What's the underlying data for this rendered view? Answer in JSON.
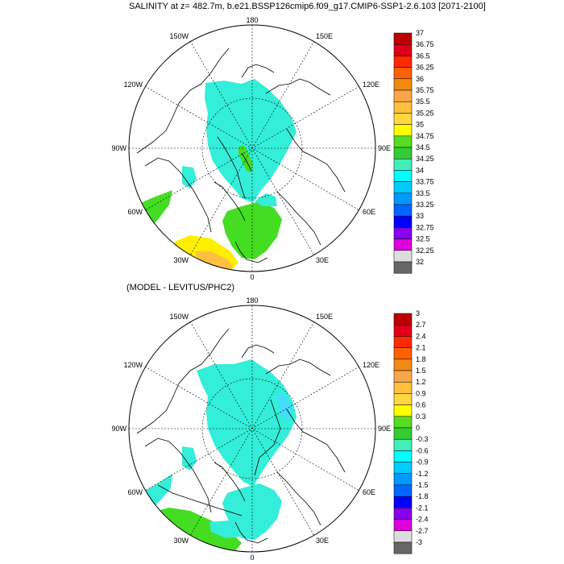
{
  "top_panel": {
    "title": "SALINITY at z= 482.7m, b.e21.BSSP126cmip6.f09_g17.CMIP6-SSP1-2.6.103 [2071-2100]",
    "longitude_labels": [
      "180",
      "150E",
      "120E",
      "90E",
      "60E",
      "30E",
      "0",
      "30W",
      "60W",
      "90W",
      "120W",
      "150W"
    ],
    "colorbar": {
      "labels": [
        "37",
        "36.75",
        "36.5",
        "36.25",
        "36",
        "35.75",
        "35.5",
        "35.25",
        "35",
        "34.75",
        "34.5",
        "34.25",
        "34",
        "33.75",
        "33.5",
        "33.25",
        "33",
        "32.75",
        "32.5",
        "32.25",
        "32"
      ],
      "colors": [
        "#c00000",
        "#e0001a",
        "#ff2a00",
        "#ff6000",
        "#f08a10",
        "#fba54a",
        "#ffc040",
        "#ffd840",
        "#ffff00",
        "#55dd22",
        "#33cc33",
        "#44eebb",
        "#00ffff",
        "#00ccff",
        "#0099ff",
        "#0066ff",
        "#0000ff",
        "#8800ee",
        "#dd00dd",
        "#dddddd",
        "#666666"
      ]
    }
  },
  "bottom_panel": {
    "title": "(MODEL - LEVITUS/PHC2)",
    "longitude_labels": [
      "180",
      "150E",
      "120E",
      "90E",
      "60E",
      "30E",
      "0",
      "30W",
      "60W",
      "90W",
      "120W",
      "150W"
    ],
    "colorbar": {
      "labels": [
        "3",
        "2.7",
        "2.4",
        "2.1",
        "1.8",
        "1.5",
        "1.2",
        "0.9",
        "0.6",
        "0.3",
        "0",
        "-0.3",
        "-0.6",
        "-0.9",
        "-1.2",
        "-1.5",
        "-1.8",
        "-2.1",
        "-2.4",
        "-2.7",
        "-3"
      ],
      "colors": [
        "#c00000",
        "#e0001a",
        "#ff2a00",
        "#ff6000",
        "#f08a10",
        "#fba54a",
        "#ffc040",
        "#ffd840",
        "#ffff00",
        "#55dd22",
        "#33cc33",
        "#44eebb",
        "#00ffff",
        "#00ccff",
        "#0099ff",
        "#0066ff",
        "#0000ff",
        "#8800ee",
        "#dd00dd",
        "#dddddd",
        "#666666"
      ]
    }
  },
  "colors": {
    "cyan_field": "#33eed8",
    "green_field": "#44dd22",
    "bright_green": "#33cc33",
    "yellow_field": "#ffee00",
    "orange_field": "#ffc040",
    "light_cyan": "#44ddff"
  }
}
